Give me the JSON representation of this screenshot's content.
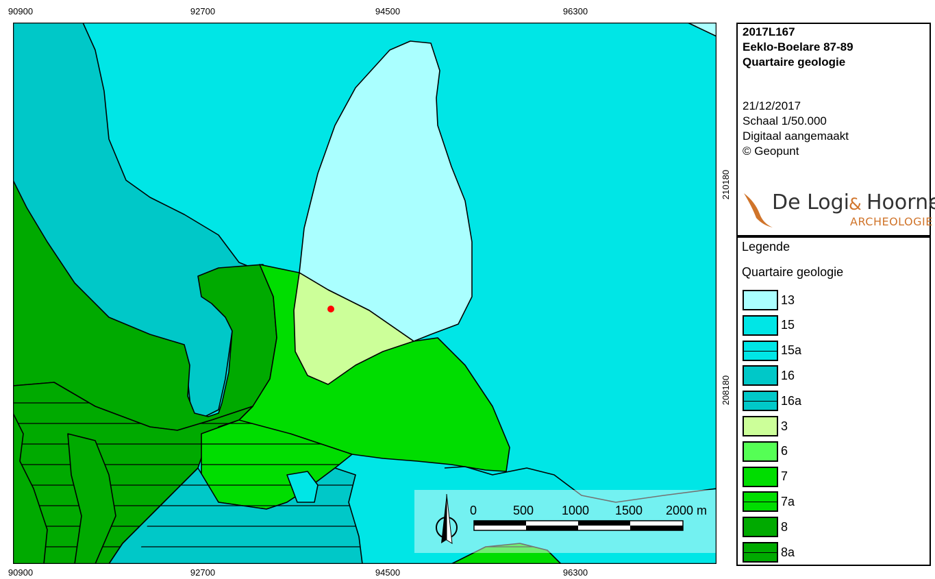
{
  "map": {
    "x_ticks_top": [
      "90900",
      "92700",
      "94500",
      "96300"
    ],
    "x_ticks_bottom": [
      "90900",
      "92700",
      "94500",
      "96300"
    ],
    "y_ticks_right": [
      "210180",
      "208180"
    ],
    "y_ticks_left": [
      "210180",
      "208180"
    ]
  },
  "title_box": {
    "line1": "2017L167",
    "line2": "Eeklo-Boelare 87-89",
    "line3": "Quartaire geologie",
    "date": "21/12/2017",
    "scale": "Schaal 1/50.000",
    "made": "Digitaal aangemaakt",
    "copyright": "© Geopunt",
    "logo": {
      "word1": "De Logi",
      "amp": "&",
      "word2": "Hoorne",
      "sub": "ARCHEOLOGIE",
      "color": "#d0742a"
    }
  },
  "scalebar": {
    "labels": [
      "0",
      "500",
      "1000",
      "1500",
      "2000 m"
    ]
  },
  "legend": {
    "title": "Legende",
    "group": "Quartaire geologie",
    "items": [
      {
        "label": "13",
        "color": "#aaffff",
        "hatch": false
      },
      {
        "label": "15",
        "color": "#00e6e6",
        "hatch": false
      },
      {
        "label": "15a",
        "color": "#00e6e6",
        "hatch": true
      },
      {
        "label": "16",
        "color": "#00c8c8",
        "hatch": false
      },
      {
        "label": "16a",
        "color": "#00c8c8",
        "hatch": true
      },
      {
        "label": "3",
        "color": "#ccff99",
        "hatch": false
      },
      {
        "label": "6",
        "color": "#55ff55",
        "hatch": false
      },
      {
        "label": "7",
        "color": "#00dd00",
        "hatch": false
      },
      {
        "label": "7a",
        "color": "#00dd00",
        "hatch": true
      },
      {
        "label": "8",
        "color": "#00aa00",
        "hatch": false
      },
      {
        "label": "8a",
        "color": "#00aa00",
        "hatch": true
      }
    ]
  }
}
